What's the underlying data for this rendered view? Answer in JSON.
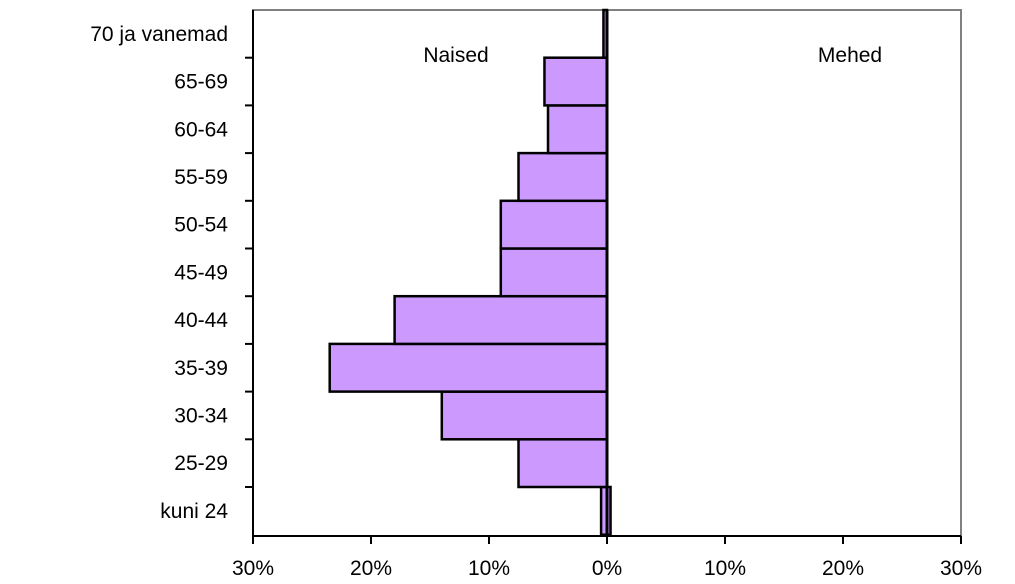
{
  "chart_data": {
    "type": "bar",
    "orientation": "horizontal",
    "categories": [
      "kuni 24",
      "25-29",
      "30-34",
      "35-39",
      "40-44",
      "45-49",
      "50-54",
      "55-59",
      "60-64",
      "65-69",
      "70 ja vanemad"
    ],
    "series": [
      {
        "name": "Naised",
        "values": [
          0.5,
          7.5,
          14.0,
          23.5,
          18.0,
          9.0,
          9.0,
          7.5,
          5.0,
          5.3,
          0.3
        ]
      },
      {
        "name": "Mehed",
        "values": [
          0.3,
          0,
          0,
          0,
          0,
          0,
          0,
          0,
          0,
          0,
          0
        ]
      }
    ],
    "xlim": [
      -30,
      30
    ],
    "xticks": [
      -30,
      -20,
      -10,
      0,
      10,
      20,
      30
    ],
    "xtick_labels": [
      "30%",
      "20%",
      "10%",
      "0%",
      "10%",
      "20%",
      "30%"
    ],
    "side_labels": {
      "left": "Naised",
      "right": "Mehed"
    },
    "bar_color": "#cc99ff",
    "grid": false
  }
}
